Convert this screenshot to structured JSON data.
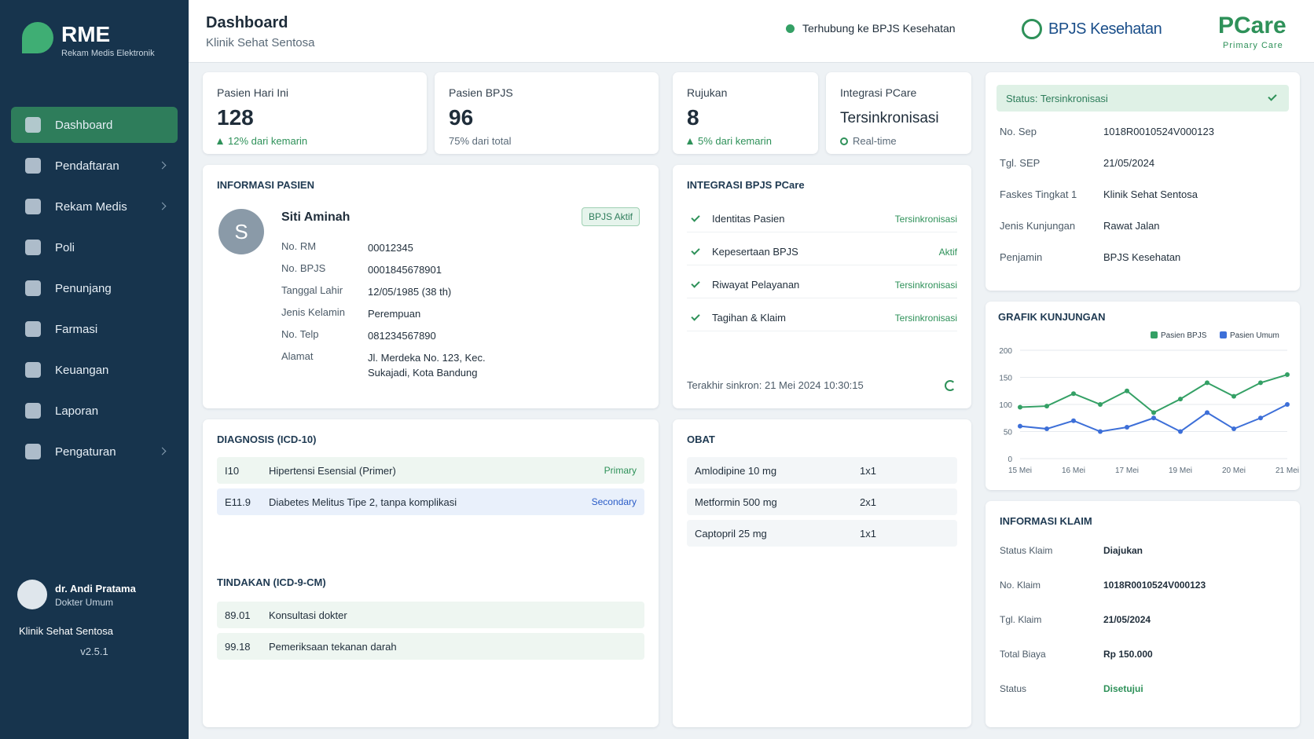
{
  "sidebar": {
    "logo": "RME",
    "logo_subtitle": "Rekam Medis Elektronik",
    "menu": [
      "Dashboard",
      "Pendaftaran",
      "Rekam Medis",
      "Poli",
      "Penunjang",
      "Farmasi",
      "Keuangan",
      "Laporan",
      "Pengaturan"
    ],
    "user_name": "dr. Andi Pratama",
    "user_role": "Dokter Umum",
    "clinic": "Klinik Sehat Sentosa",
    "version": "v2.5.1"
  },
  "header": {
    "title": "Dashboard",
    "subtitle": "Klinik Sehat Sentosa",
    "connection": "Terhubung ke BPJS Kesehatan",
    "bpjs_logo": "BPJS Kesehatan",
    "pcare_logo": "PCare",
    "pcare_tagline": "Primary Care"
  },
  "stats": [
    {
      "label": "Pasien Hari Ini",
      "value": "128",
      "note": "12% dari kemarin"
    },
    {
      "label": "Pasien BPJS",
      "value": "96",
      "note": "75% dari total"
    },
    {
      "label": "Rujukan",
      "value": "8",
      "note": "5% dari kemarin"
    },
    {
      "label": "Integrasi PCare",
      "value": "Tersinkronisasi",
      "note": "Real-time"
    }
  ],
  "patient": {
    "title": "INFORMASI PASIEN",
    "initial": "S",
    "name": "Siti Aminah",
    "badge": "BPJS Aktif",
    "fields": [
      [
        "No. RM",
        "00012345"
      ],
      [
        "No. BPJS",
        "0001845678901"
      ],
      [
        "Tanggal Lahir",
        "12/05/1985 (38 th)"
      ],
      [
        "Jenis Kelamin",
        "Perempuan"
      ],
      [
        "No. Telp",
        "081234567890"
      ],
      [
        "Alamat",
        "Jl. Merdeka No. 123, Kec. Sukajadi, Kota Bandung"
      ]
    ]
  },
  "integration": {
    "title": "INTEGRASI BPJS PCare",
    "items": [
      [
        "Identitas Pasien",
        "Tersinkronisasi"
      ],
      [
        "Kepesertaan BPJS",
        "Aktif"
      ],
      [
        "Riwayat Pelayanan",
        "Tersinkronisasi"
      ],
      [
        "Tagihan & Klaim",
        "Tersinkronisasi"
      ]
    ],
    "last_sync": "Terakhir sinkron: 21 Mei 2024 10:30:15"
  },
  "sep": {
    "status": "Status: Tersinkronisasi",
    "fields": [
      [
        "No. Sep",
        "1018R0010524V000123"
      ],
      [
        "Tgl. SEP",
        "21/05/2024"
      ],
      [
        "Faskes Tingkat 1",
        "Klinik Sehat Sentosa"
      ],
      [
        "Jenis Kunjungan",
        "Rawat Jalan"
      ],
      [
        "Penjamin",
        "BPJS Kesehatan"
      ]
    ]
  },
  "chart_data": {
    "type": "line",
    "title": "GRAFIK KUNJUNGAN",
    "categories": [
      "15 Mei",
      null,
      "16 Mei",
      null,
      "17 Mei",
      null,
      "19 Mei",
      null,
      "20 Mei",
      null,
      "21 Mei"
    ],
    "series": [
      {
        "name": "Pasien BPJS",
        "color": "#34a065",
        "values": [
          95,
          97,
          120,
          100,
          125,
          85,
          110,
          140,
          115,
          140,
          155
        ]
      },
      {
        "name": "Pasien Umum",
        "color": "#3d6fd8",
        "values": [
          60,
          55,
          70,
          50,
          58,
          75,
          50,
          85,
          55,
          75,
          100
        ]
      }
    ],
    "ylim": [
      0,
      200
    ],
    "yticks": [
      0,
      50,
      100,
      150,
      200
    ],
    "grid": true
  },
  "diagnosis": {
    "title": "DIAGNOSIS (ICD-10)",
    "rows": [
      [
        "I10",
        "Hipertensi Esensial (Primer)",
        "Primary"
      ],
      [
        "E11.9",
        "Diabetes Melitus Tipe 2, tanpa komplikasi",
        "Secondary"
      ]
    ]
  },
  "procedures": {
    "title": "TINDAKAN (ICD-9-CM)",
    "rows": [
      [
        "89.01",
        "Konsultasi dokter"
      ],
      [
        "99.18",
        "Pemeriksaan tekanan darah"
      ]
    ]
  },
  "medication": {
    "title": "OBAT",
    "rows": [
      [
        "Amlodipine 10 mg",
        "1x1"
      ],
      [
        "Metformin 500 mg",
        "2x1"
      ],
      [
        "Captopril 25 mg",
        "1x1"
      ]
    ]
  },
  "claim": {
    "title": "INFORMASI KLAIM",
    "fields": [
      [
        "Status Klaim",
        "Diajukan"
      ],
      [
        "No. Klaim",
        "1018R0010524V000123"
      ],
      [
        "Tgl. Klaim",
        "21/05/2024"
      ],
      [
        "Total Biaya",
        "Rp 150.000"
      ],
      [
        "Status",
        "Disetujui"
      ]
    ]
  }
}
